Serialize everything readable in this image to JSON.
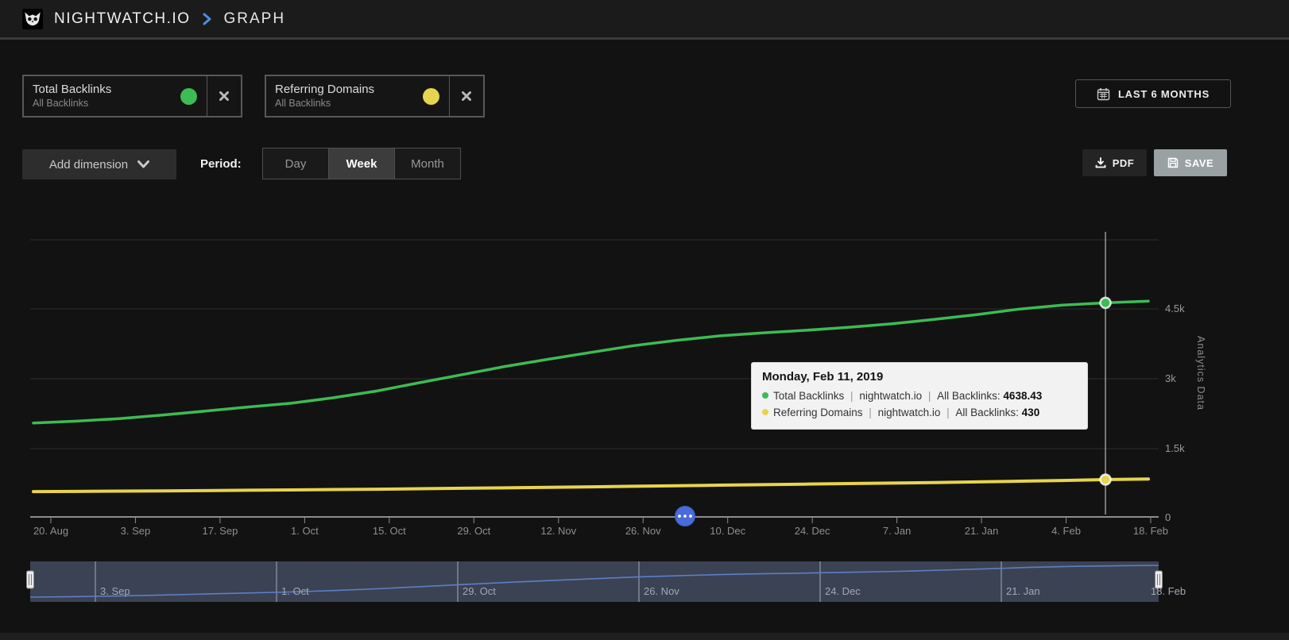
{
  "topbar": {
    "brand": "NIGHTWATCH.IO",
    "separator": ">",
    "page": "GRAPH"
  },
  "icons": {
    "logo": "owl-icon",
    "breadcrumb": "chevron-right-icon",
    "date_range": "calendar-icon",
    "add_dimension": "chevron-down-icon",
    "pdf": "download-icon",
    "save": "floppy-icon",
    "card_remove": "x-icon",
    "scroll_thumb": "three-dots-icon"
  },
  "metric_cards": [
    {
      "title": "Total Backlinks",
      "subtitle": "All Backlinks",
      "color": "#3dbb54"
    },
    {
      "title": "Referring Domains",
      "subtitle": "All Backlinks",
      "color": "#e7d44e"
    }
  ],
  "date_range": {
    "label": "LAST 6 MONTHS"
  },
  "toolbar": {
    "add_dimension_label": "Add dimension",
    "period_label": "Period:",
    "period_options": [
      "Day",
      "Week",
      "Month"
    ],
    "period_selected": "Week",
    "pdf_label": "PDF",
    "save_label": "SAVE"
  },
  "chart_data": {
    "type": "line",
    "title": "",
    "x_tick_labels": [
      "20. Aug",
      "3. Sep",
      "17. Sep",
      "1. Oct",
      "15. Oct",
      "29. Oct",
      "12. Nov",
      "26. Nov",
      "10. Dec",
      "24. Dec",
      "7. Jan",
      "21. Jan",
      "4. Feb",
      "18. Feb"
    ],
    "y_tick_labels": [
      "4.5k",
      "3k",
      "1.5k",
      "0"
    ],
    "y_axis_title": "Analytics Data",
    "ylim": [
      0,
      6000
    ],
    "grid": true,
    "legend_position": "none",
    "period": "weekly",
    "highlight_index": 25,
    "series": [
      {
        "name": "Total Backlinks",
        "site": "nightwatch.io",
        "metric": "All Backlinks",
        "color": "#3dbb54",
        "values": [
          2045,
          2085,
          2140,
          2215,
          2300,
          2390,
          2470,
          2590,
          2735,
          2915,
          3090,
          3265,
          3420,
          3570,
          3715,
          3830,
          3925,
          3990,
          4045,
          4110,
          4185,
          4280,
          4385,
          4505,
          4590,
          4638.43,
          4675
        ]
      },
      {
        "name": "Referring Domains",
        "site": "nightwatch.io",
        "metric": "All Backlinks",
        "color": "#e7d44e",
        "values": [
          295,
          297,
          300,
          303,
          306,
          310,
          314,
          318,
          322,
          327,
          332,
          337,
          343,
          349,
          355,
          361,
          367,
          373,
          379,
          385,
          391,
          397,
          404,
          412,
          420,
          430,
          436
        ]
      }
    ]
  },
  "tooltip": {
    "title": "Monday, Feb 11, 2019",
    "separator": "|",
    "rows": [
      {
        "series": "Total Backlinks",
        "site": "nightwatch.io",
        "metric": "All Backlinks",
        "value": "4638.43",
        "color": "#3dbb54"
      },
      {
        "series": "Referring Domains",
        "site": "nightwatch.io",
        "metric": "All Backlinks",
        "value": "430",
        "color": "#e7d44e"
      }
    ]
  },
  "navigator": {
    "labels": [
      "3. Sep",
      "1. Oct",
      "29. Oct",
      "26. Nov",
      "24. Dec",
      "21. Jan",
      "18. Feb"
    ],
    "line_color": "#5d7fc4",
    "background": "#3b4254"
  }
}
